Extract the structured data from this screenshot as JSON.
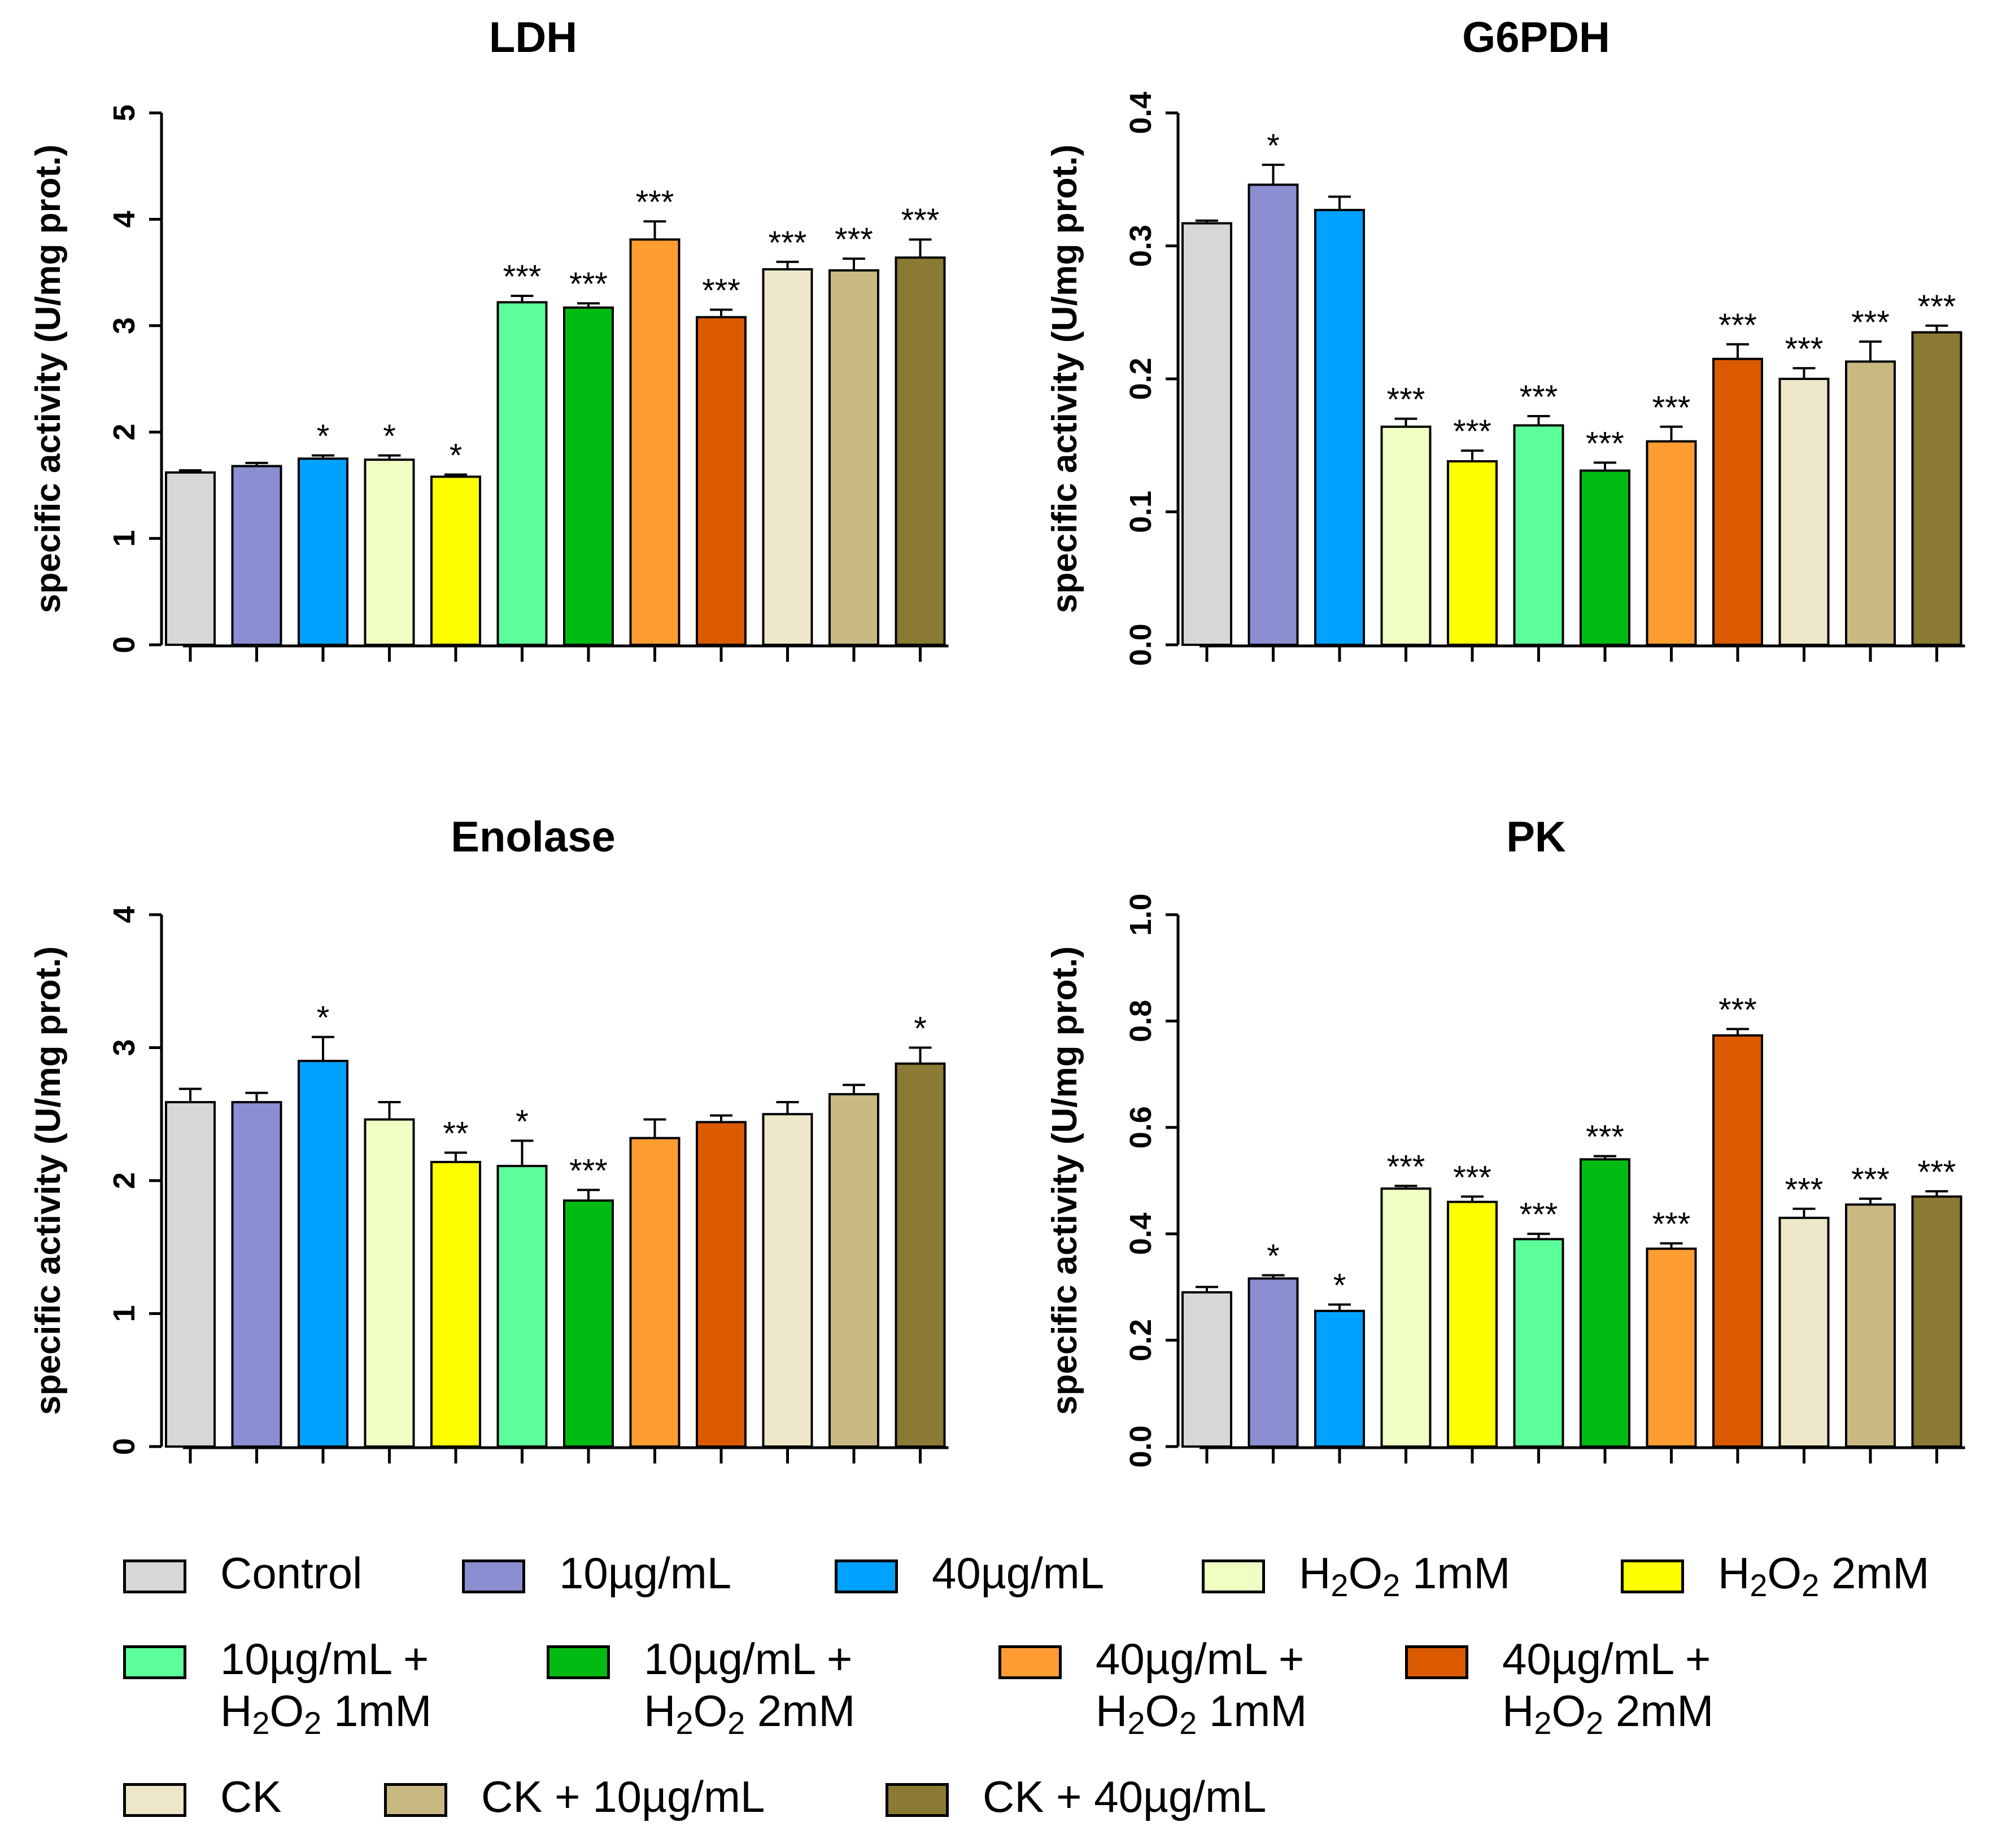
{
  "groups": [
    {
      "label": "Control",
      "color": "#d7d7d7"
    },
    {
      "label": "10µg/mL",
      "color": "#8b8fd1"
    },
    {
      "label": "40µg/mL",
      "color": "#00a2ff"
    },
    {
      "label": "H2O2 1mM",
      "color": "#efffc3"
    },
    {
      "label": "H2O2 2mM",
      "color": "#ffff00"
    },
    {
      "label": "10µg/mL + H2O2 1mM",
      "color": "#5dff9b"
    },
    {
      "label": "10µg/mL + H2O2 2mM",
      "color": "#00bc12"
    },
    {
      "label": "40µg/mL + H2O2 1mM",
      "color": "#ff9d33"
    },
    {
      "label": "40µg/mL + H2O2 2mM",
      "color": "#db5a00"
    },
    {
      "label": "CK",
      "color": "#ede6c8"
    },
    {
      "label": "CK + 10µg/mL",
      "color": "#c8b882"
    },
    {
      "label": "CK + 40µg/mL",
      "color": "#8a7a33"
    }
  ],
  "legend": {
    "items": [
      {
        "line1": "Control",
        "line2": ""
      },
      {
        "line1": "10µg/mL",
        "line2": ""
      },
      {
        "line1": "40µg/mL",
        "line2": ""
      },
      {
        "line1_pre": "H",
        "sub1": "2",
        "mid": "O",
        "sub2": "2",
        "line1_post": " 1mM",
        "line2": ""
      },
      {
        "line1_pre": "H",
        "sub1": "2",
        "mid": "O",
        "sub2": "2",
        "line1_post": " 2mM",
        "line2": ""
      },
      {
        "line1": "10µg/mL +",
        "l2_pre": "H",
        "l2_sub1": "2",
        "l2_mid": "O",
        "l2_sub2": "2",
        "l2_post": " 1mM"
      },
      {
        "line1": "10µg/mL +",
        "l2_pre": "H",
        "l2_sub1": "2",
        "l2_mid": "O",
        "l2_sub2": "2",
        "l2_post": " 2mM"
      },
      {
        "line1": "40µg/mL +",
        "l2_pre": "H",
        "l2_sub1": "2",
        "l2_mid": "O",
        "l2_sub2": "2",
        "l2_post": " 1mM"
      },
      {
        "line1": "40µg/mL +",
        "l2_pre": "H",
        "l2_sub1": "2",
        "l2_mid": "O",
        "l2_sub2": "2",
        "l2_post": " 2mM"
      },
      {
        "line1": "CK",
        "line2": ""
      },
      {
        "line1": "CK + 10µg/mL",
        "line2": ""
      },
      {
        "line1": "CK + 40µg/mL",
        "line2": ""
      }
    ]
  },
  "chart_data": [
    {
      "type": "bar",
      "title": "LDH",
      "ylabel": "specific activity (U/mg prot.)",
      "ylim": [
        0,
        5
      ],
      "yticks": [
        "0",
        "1",
        "2",
        "3",
        "4",
        "5"
      ],
      "categories": [
        "Control",
        "10µg/mL",
        "40µg/mL",
        "H2O2 1mM",
        "H2O2 2mM",
        "10µg/mL + H2O2 1mM",
        "10µg/mL + H2O2 2mM",
        "40µg/mL + H2O2 1mM",
        "40µg/mL + H2O2 2mM",
        "CK",
        "CK + 10µg/mL",
        "CK + 40µg/mL"
      ],
      "values": [
        1.62,
        1.68,
        1.75,
        1.74,
        1.58,
        3.22,
        3.17,
        3.81,
        3.08,
        3.53,
        3.52,
        3.64
      ],
      "errors": [
        0.02,
        0.03,
        0.03,
        0.04,
        0.02,
        0.06,
        0.04,
        0.17,
        0.07,
        0.07,
        0.11,
        0.17
      ],
      "significance": [
        "",
        "",
        "*",
        "*",
        "*",
        "***",
        "***",
        "***",
        "***",
        "***",
        "***",
        "***"
      ]
    },
    {
      "type": "bar",
      "title": "G6PDH",
      "ylabel": "specific activity (U/mg prot.)",
      "ylim": [
        0,
        0.4
      ],
      "yticks": [
        "0.0",
        "0.1",
        "0.2",
        "0.3",
        "0.4"
      ],
      "categories": [
        "Control",
        "10µg/mL",
        "40µg/mL",
        "H2O2 1mM",
        "H2O2 2mM",
        "10µg/mL + H2O2 1mM",
        "10µg/mL + H2O2 2mM",
        "40µg/mL + H2O2 1mM",
        "40µg/mL + H2O2 2mM",
        "CK",
        "CK + 10µg/mL",
        "CK + 40µg/mL"
      ],
      "values": [
        0.317,
        0.346,
        0.327,
        0.164,
        0.138,
        0.165,
        0.131,
        0.153,
        0.215,
        0.2,
        0.213,
        0.235
      ],
      "errors": [
        0.002,
        0.015,
        0.01,
        0.006,
        0.008,
        0.007,
        0.006,
        0.011,
        0.011,
        0.008,
        0.015,
        0.005
      ],
      "significance": [
        "",
        "*",
        "",
        "***",
        "***",
        "***",
        "***",
        "***",
        "***",
        "***",
        "***",
        "***"
      ]
    },
    {
      "type": "bar",
      "title": "Enolase",
      "ylabel": "specific activity (U/mg prot.)",
      "ylim": [
        0,
        4
      ],
      "yticks": [
        "0",
        "1",
        "2",
        "3",
        "4"
      ],
      "categories": [
        "Control",
        "10µg/mL",
        "40µg/mL",
        "H2O2 1mM",
        "H2O2 2mM",
        "10µg/mL + H2O2 1mM",
        "10µg/mL + H2O2 2mM",
        "40µg/mL + H2O2 1mM",
        "40µg/mL + H2O2 2mM",
        "CK",
        "CK + 10µg/mL",
        "CK + 40µg/mL"
      ],
      "values": [
        2.59,
        2.59,
        2.9,
        2.46,
        2.14,
        2.11,
        1.85,
        2.32,
        2.44,
        2.5,
        2.65,
        2.88
      ],
      "errors": [
        0.1,
        0.07,
        0.18,
        0.13,
        0.07,
        0.19,
        0.08,
        0.14,
        0.05,
        0.09,
        0.07,
        0.12
      ],
      "significance": [
        "",
        "",
        "*",
        "",
        "**",
        "*",
        "***",
        "",
        "",
        "",
        "",
        "*"
      ]
    },
    {
      "type": "bar",
      "title": "PK",
      "ylabel": "specific activity (U/mg prot.)",
      "ylim": [
        0,
        1.0
      ],
      "yticks": [
        "0.0",
        "0.2",
        "0.4",
        "0.6",
        "0.8",
        "1.0"
      ],
      "categories": [
        "Control",
        "10µg/mL",
        "40µg/mL",
        "H2O2 1mM",
        "H2O2 2mM",
        "10µg/mL + H2O2 1mM",
        "10µg/mL + H2O2 2mM",
        "40µg/mL + H2O2 1mM",
        "40µg/mL + H2O2 2mM",
        "CK",
        "CK + 10µg/mL",
        "CK + 40µg/mL"
      ],
      "values": [
        0.29,
        0.316,
        0.255,
        0.485,
        0.46,
        0.39,
        0.54,
        0.372,
        0.773,
        0.43,
        0.455,
        0.47
      ],
      "errors": [
        0.01,
        0.006,
        0.012,
        0.005,
        0.01,
        0.01,
        0.006,
        0.01,
        0.012,
        0.017,
        0.011,
        0.01
      ],
      "significance": [
        "",
        "*",
        "*",
        "***",
        "***",
        "***",
        "***",
        "***",
        "***",
        "***",
        "***",
        "***"
      ]
    }
  ]
}
